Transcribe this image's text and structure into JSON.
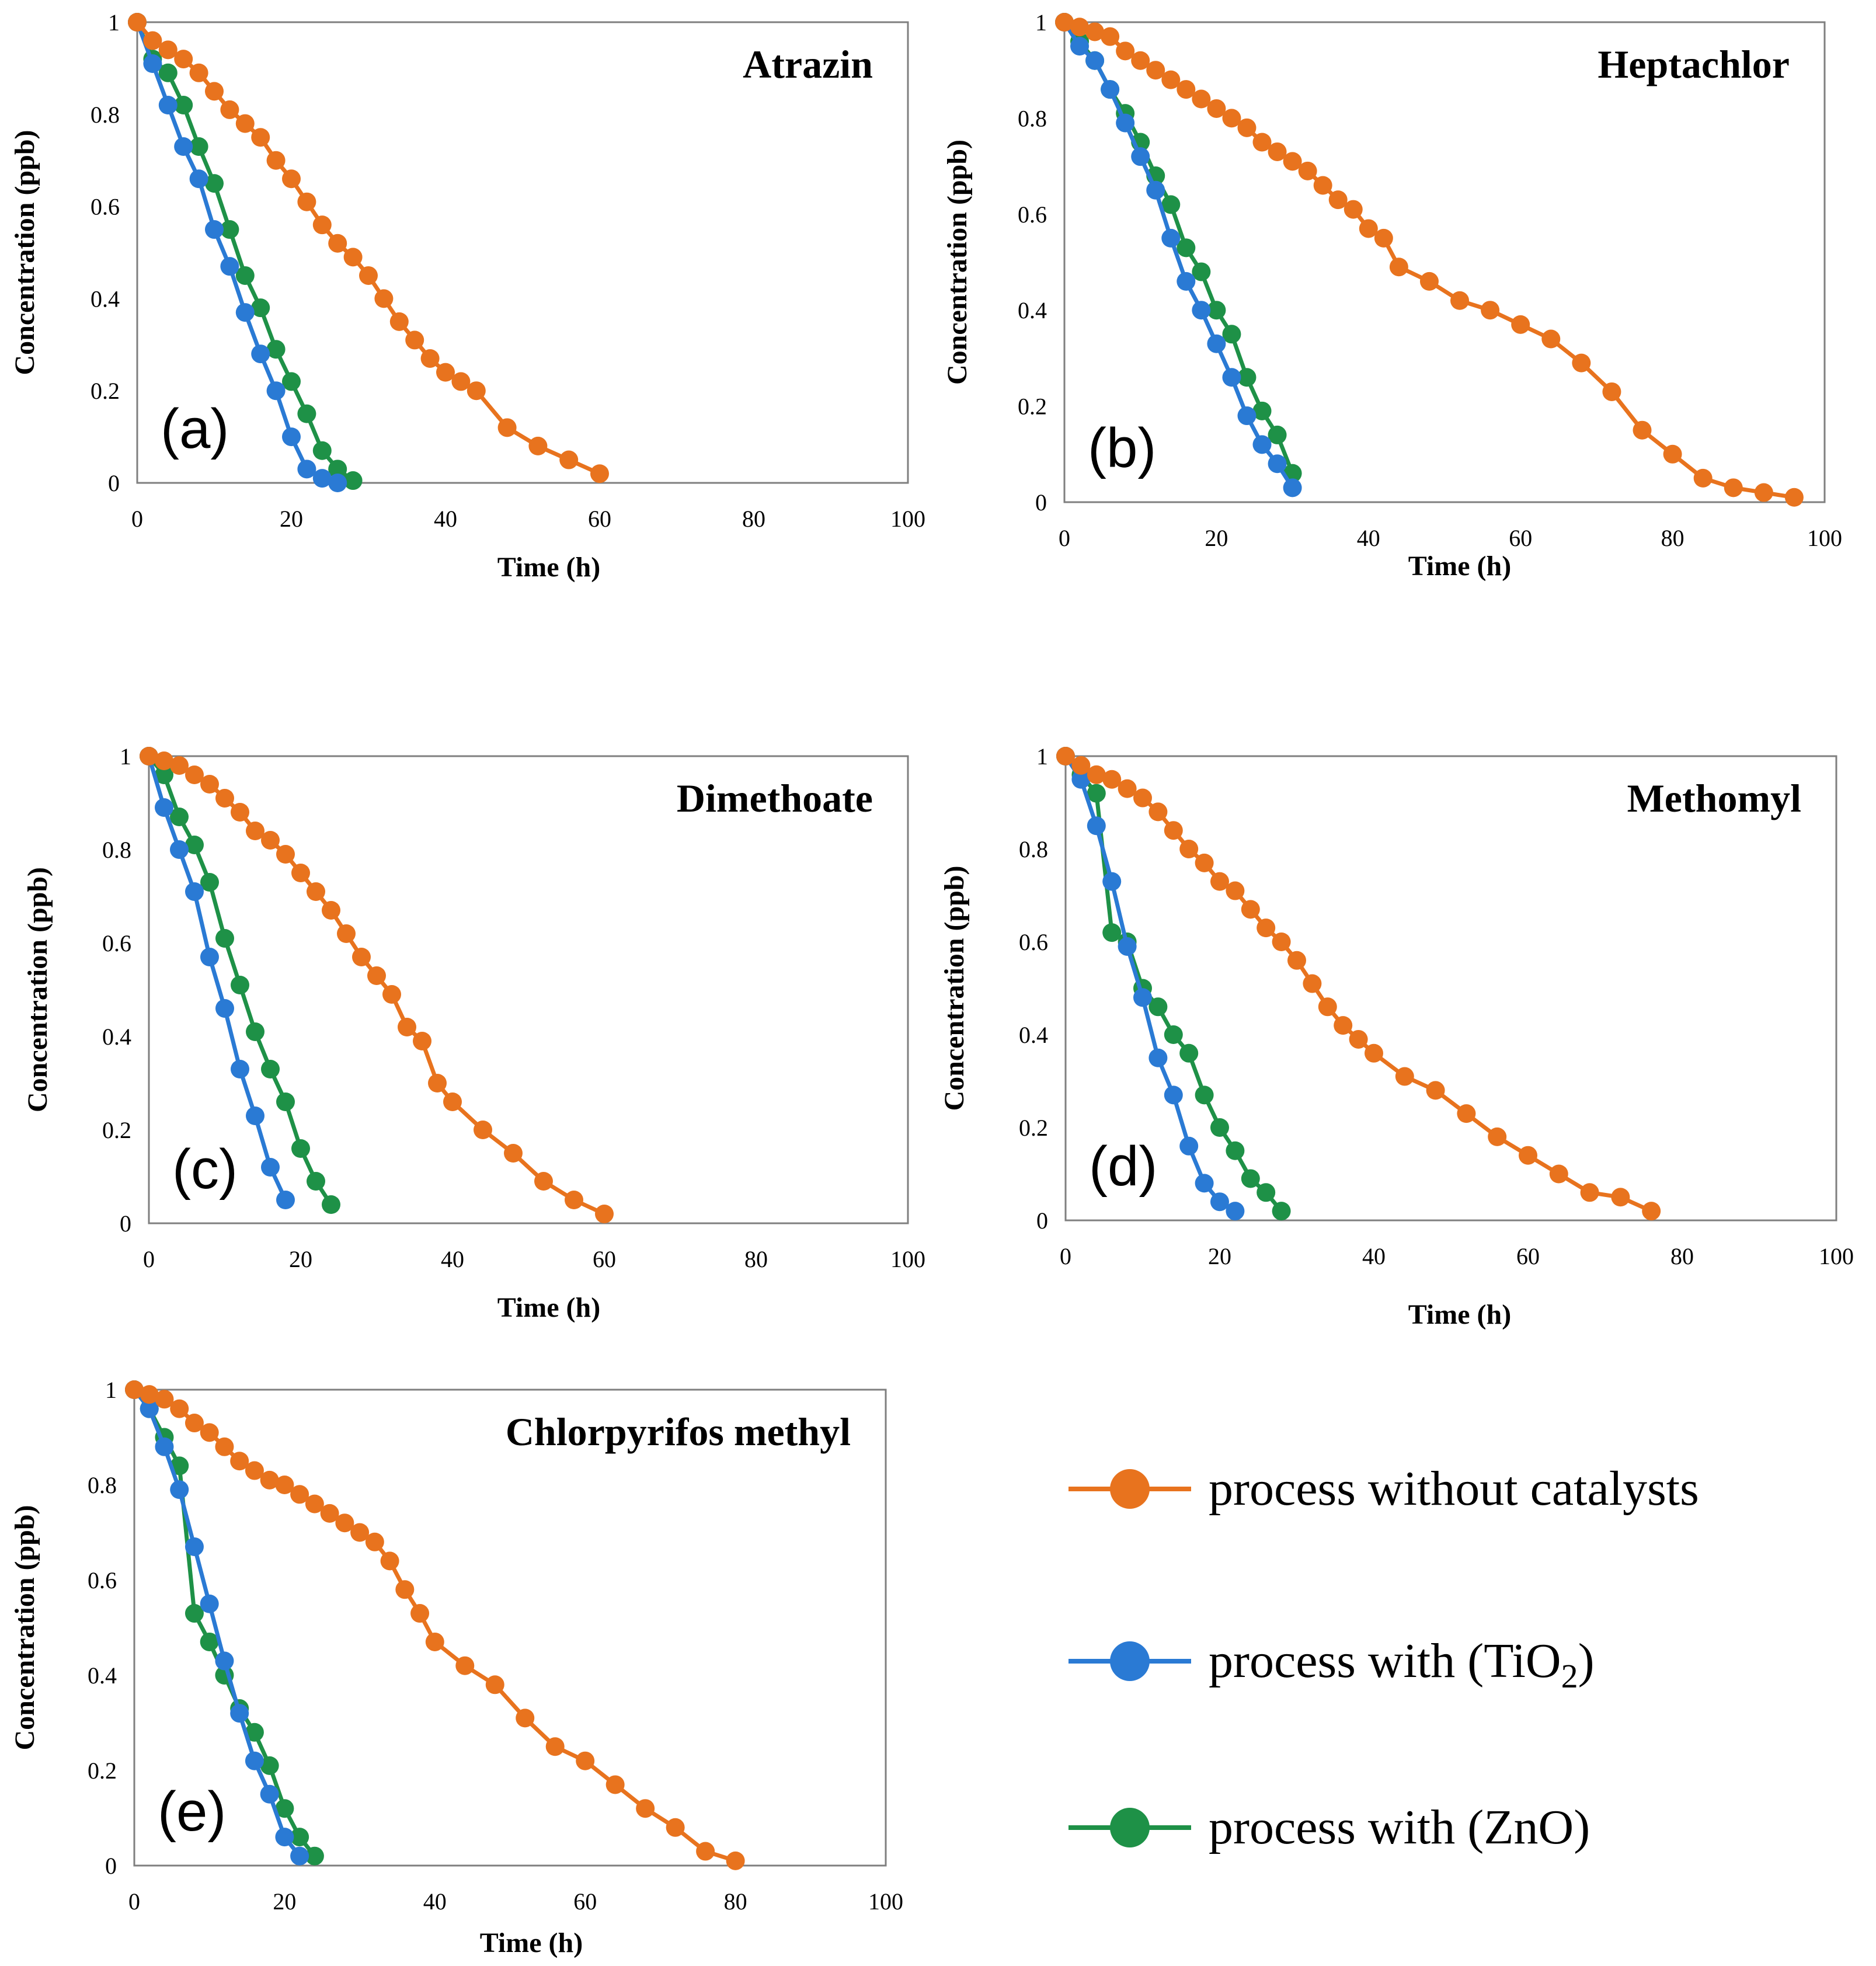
{
  "figure": {
    "legend": [
      {
        "series": "none",
        "label": "process without catalysts",
        "color": "#E8731E"
      },
      {
        "series": "tio2",
        "label_main": "process with  (TiO",
        "label_sub": "2",
        "label_end": ")",
        "color": "#2A7AD4"
      },
      {
        "series": "zno",
        "label_main": "process with  (ZnO)",
        "color": "#1E9147"
      }
    ]
  },
  "chart_data": [
    {
      "type": "line",
      "id": "a",
      "title": "Atrazin",
      "panel_label": "(a)",
      "xlabel": "Time (h)",
      "ylabel": "Concentration (ppb)",
      "xlim": [
        0,
        100
      ],
      "ylim": [
        0,
        1
      ],
      "xticks": [
        "0",
        "20",
        "40",
        "60",
        "80",
        "100"
      ],
      "yticks": [
        "0",
        "0.2",
        "0.4",
        "0.6",
        "0.8",
        "1"
      ],
      "series": [
        {
          "key": "none",
          "name": "process without catalysts",
          "color": "#E8731E",
          "x": [
            0,
            2,
            4,
            6,
            8,
            10,
            12,
            14,
            16,
            18,
            20,
            22,
            24,
            26,
            28,
            30,
            32,
            34,
            36,
            38,
            40,
            42,
            44,
            48,
            52,
            56,
            60
          ],
          "y": [
            1,
            0.96,
            0.94,
            0.92,
            0.89,
            0.85,
            0.81,
            0.78,
            0.75,
            0.7,
            0.66,
            0.61,
            0.56,
            0.52,
            0.49,
            0.45,
            0.4,
            0.35,
            0.31,
            0.27,
            0.24,
            0.22,
            0.2,
            0.12,
            0.08,
            0.05,
            0.02
          ]
        },
        {
          "key": "tio2",
          "name": "process with (TiO2)",
          "color": "#2A7AD4",
          "x": [
            0,
            2,
            4,
            6,
            8,
            10,
            12,
            14,
            16,
            18,
            20,
            22,
            24,
            26
          ],
          "y": [
            1,
            0.91,
            0.82,
            0.73,
            0.66,
            0.55,
            0.47,
            0.37,
            0.28,
            0.2,
            0.1,
            0.03,
            0.01,
            0
          ]
        },
        {
          "key": "zno",
          "name": "process with (ZnO)",
          "color": "#1E9147",
          "x": [
            0,
            2,
            4,
            6,
            8,
            10,
            12,
            14,
            16,
            18,
            20,
            22,
            24,
            26,
            28
          ],
          "y": [
            1,
            0.92,
            0.89,
            0.82,
            0.73,
            0.65,
            0.55,
            0.45,
            0.38,
            0.29,
            0.22,
            0.15,
            0.07,
            0.03,
            0.005
          ]
        }
      ]
    },
    {
      "type": "line",
      "id": "b",
      "title": "Heptachlor",
      "panel_label": "(b)",
      "xlabel": "Time (h)",
      "ylabel": "Concentration (ppb)",
      "xlim": [
        0,
        100
      ],
      "ylim": [
        0,
        1
      ],
      "xticks": [
        "0",
        "20",
        "40",
        "60",
        "80",
        "100"
      ],
      "yticks": [
        "0",
        "0.2",
        "0.4",
        "0.6",
        "0.8",
        "1"
      ],
      "series": [
        {
          "key": "none",
          "name": "process without catalysts",
          "color": "#E8731E",
          "x": [
            0,
            2,
            4,
            6,
            8,
            10,
            12,
            14,
            16,
            18,
            20,
            22,
            24,
            26,
            28,
            30,
            32,
            34,
            36,
            38,
            40,
            42,
            44,
            48,
            52,
            56,
            60,
            64,
            68,
            72,
            76,
            80,
            84,
            88,
            92,
            96
          ],
          "y": [
            1,
            0.99,
            0.98,
            0.97,
            0.94,
            0.92,
            0.9,
            0.88,
            0.86,
            0.84,
            0.82,
            0.8,
            0.78,
            0.75,
            0.73,
            0.71,
            0.69,
            0.66,
            0.63,
            0.61,
            0.57,
            0.55,
            0.49,
            0.46,
            0.42,
            0.4,
            0.37,
            0.34,
            0.29,
            0.23,
            0.15,
            0.1,
            0.05,
            0.03,
            0.02,
            0.01
          ]
        },
        {
          "key": "tio2",
          "name": "process with (TiO2)",
          "color": "#2A7AD4",
          "x": [
            0,
            2,
            4,
            6,
            8,
            10,
            12,
            14,
            16,
            18,
            20,
            22,
            24,
            26,
            28,
            30
          ],
          "y": [
            1,
            0.95,
            0.92,
            0.86,
            0.79,
            0.72,
            0.65,
            0.55,
            0.46,
            0.4,
            0.33,
            0.26,
            0.18,
            0.12,
            0.08,
            0.03
          ]
        },
        {
          "key": "zno",
          "name": "process with (ZnO)",
          "color": "#1E9147",
          "x": [
            0,
            2,
            4,
            6,
            8,
            10,
            12,
            14,
            16,
            18,
            20,
            22,
            24,
            26,
            28,
            30
          ],
          "y": [
            1,
            0.96,
            0.92,
            0.86,
            0.81,
            0.75,
            0.68,
            0.62,
            0.53,
            0.48,
            0.4,
            0.35,
            0.26,
            0.19,
            0.14,
            0.06
          ]
        }
      ]
    },
    {
      "type": "line",
      "id": "c",
      "title": "Dimethoate",
      "panel_label": "(c)",
      "xlabel": "Time (h)",
      "ylabel": "Concentration (ppb)",
      "xlim": [
        0,
        100
      ],
      "ylim": [
        0,
        1
      ],
      "xticks": [
        "0",
        "20",
        "40",
        "60",
        "80",
        "100"
      ],
      "yticks": [
        "0",
        "0.2",
        "0.4",
        "0.6",
        "0.8",
        "1"
      ],
      "series": [
        {
          "key": "none",
          "name": "process without catalysts",
          "color": "#E8731E",
          "x": [
            0,
            2,
            4,
            6,
            8,
            10,
            12,
            14,
            16,
            18,
            20,
            22,
            24,
            26,
            28,
            30,
            32,
            34,
            36,
            38,
            40,
            44,
            48,
            52,
            56,
            60
          ],
          "y": [
            1,
            0.99,
            0.98,
            0.96,
            0.94,
            0.91,
            0.88,
            0.84,
            0.82,
            0.79,
            0.75,
            0.71,
            0.67,
            0.62,
            0.57,
            0.53,
            0.49,
            0.42,
            0.39,
            0.3,
            0.26,
            0.2,
            0.15,
            0.09,
            0.05,
            0.02
          ]
        },
        {
          "key": "tio2",
          "name": "process with (TiO2)",
          "color": "#2A7AD4",
          "x": [
            0,
            2,
            4,
            6,
            8,
            10,
            12,
            14,
            16,
            18
          ],
          "y": [
            1,
            0.89,
            0.8,
            0.71,
            0.57,
            0.46,
            0.33,
            0.23,
            0.12,
            0.05
          ]
        },
        {
          "key": "zno",
          "name": "process with (ZnO)",
          "color": "#1E9147",
          "x": [
            0,
            2,
            4,
            6,
            8,
            10,
            12,
            14,
            16,
            18,
            20,
            22,
            24
          ],
          "y": [
            1,
            0.96,
            0.87,
            0.81,
            0.73,
            0.61,
            0.51,
            0.41,
            0.33,
            0.26,
            0.16,
            0.09,
            0.04
          ]
        }
      ]
    },
    {
      "type": "line",
      "id": "d",
      "title": "Methomyl",
      "panel_label": "(d)",
      "xlabel": "Time (h)",
      "ylabel": "Concentration (ppb)",
      "xlim": [
        0,
        100
      ],
      "ylim": [
        0,
        1
      ],
      "xticks": [
        "0",
        "20",
        "40",
        "60",
        "80",
        "100"
      ],
      "yticks": [
        "0",
        "0.2",
        "0.4",
        "0.6",
        "0.8",
        "1"
      ],
      "series": [
        {
          "key": "none",
          "name": "process without catalysts",
          "color": "#E8731E",
          "x": [
            0,
            2,
            4,
            6,
            8,
            10,
            12,
            14,
            16,
            18,
            20,
            22,
            24,
            26,
            28,
            30,
            32,
            34,
            36,
            38,
            40,
            44,
            48,
            52,
            56,
            60,
            64,
            68,
            72,
            76
          ],
          "y": [
            1,
            0.98,
            0.96,
            0.95,
            0.93,
            0.91,
            0.88,
            0.84,
            0.8,
            0.77,
            0.73,
            0.71,
            0.67,
            0.63,
            0.6,
            0.56,
            0.51,
            0.46,
            0.42,
            0.39,
            0.36,
            0.31,
            0.28,
            0.23,
            0.18,
            0.14,
            0.1,
            0.06,
            0.05,
            0.02
          ]
        },
        {
          "key": "tio2",
          "name": "process with (TiO2)",
          "color": "#2A7AD4",
          "x": [
            0,
            2,
            4,
            6,
            8,
            10,
            12,
            14,
            16,
            18,
            20,
            22
          ],
          "y": [
            1,
            0.95,
            0.85,
            0.73,
            0.59,
            0.48,
            0.35,
            0.27,
            0.16,
            0.08,
            0.04,
            0.02
          ]
        },
        {
          "key": "zno",
          "name": "process with (ZnO)",
          "color": "#1E9147",
          "x": [
            0,
            2,
            4,
            6,
            8,
            10,
            12,
            14,
            16,
            18,
            20,
            22,
            24,
            26,
            28
          ],
          "y": [
            1,
            0.96,
            0.92,
            0.62,
            0.6,
            0.5,
            0.46,
            0.4,
            0.36,
            0.27,
            0.2,
            0.15,
            0.09,
            0.06,
            0.02
          ]
        }
      ]
    },
    {
      "type": "line",
      "id": "e",
      "title": "Chlorpyrifos  methyl",
      "panel_label": "(e)",
      "xlabel": "Time (h)",
      "ylabel": "Concentration (ppb)",
      "xlim": [
        0,
        100
      ],
      "ylim": [
        0,
        1
      ],
      "xticks": [
        "0",
        "20",
        "40",
        "60",
        "80",
        "100"
      ],
      "yticks": [
        "0",
        "0.2",
        "0.4",
        "0.6",
        "0.8",
        "1"
      ],
      "series": [
        {
          "key": "none",
          "name": "process without catalysts",
          "color": "#E8731E",
          "x": [
            0,
            2,
            4,
            6,
            8,
            10,
            12,
            14,
            16,
            18,
            20,
            22,
            24,
            26,
            28,
            30,
            32,
            34,
            36,
            38,
            40,
            44,
            48,
            52,
            56,
            60,
            64,
            68,
            72,
            76,
            80
          ],
          "y": [
            1,
            0.99,
            0.98,
            0.96,
            0.93,
            0.91,
            0.88,
            0.85,
            0.83,
            0.81,
            0.8,
            0.78,
            0.76,
            0.74,
            0.72,
            0.7,
            0.68,
            0.64,
            0.58,
            0.53,
            0.47,
            0.42,
            0.38,
            0.31,
            0.25,
            0.22,
            0.17,
            0.12,
            0.08,
            0.03,
            0.01
          ]
        },
        {
          "key": "tio2",
          "name": "process with (TiO2)",
          "color": "#2A7AD4",
          "x": [
            0,
            2,
            4,
            6,
            8,
            10,
            12,
            14,
            16,
            18,
            20,
            22
          ],
          "y": [
            1,
            0.96,
            0.88,
            0.79,
            0.67,
            0.55,
            0.43,
            0.32,
            0.22,
            0.15,
            0.06,
            0.02
          ]
        },
        {
          "key": "zno",
          "name": "process with (ZnO)",
          "color": "#1E9147",
          "x": [
            0,
            2,
            4,
            6,
            8,
            10,
            12,
            14,
            16,
            18,
            20,
            22,
            24
          ],
          "y": [
            1,
            0.96,
            0.9,
            0.84,
            0.53,
            0.47,
            0.4,
            0.33,
            0.28,
            0.21,
            0.12,
            0.06,
            0.02
          ]
        }
      ]
    }
  ]
}
